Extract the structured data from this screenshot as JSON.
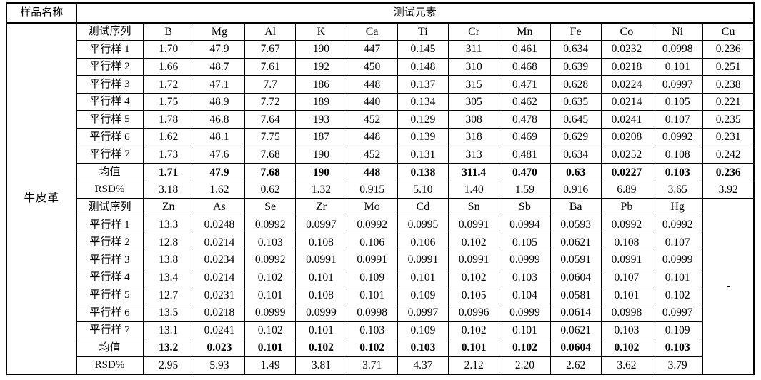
{
  "colors": {
    "text": "#000000",
    "border": "#000000",
    "background": "#ffffff"
  },
  "table": {
    "sample_name_header": "样品名称",
    "elements_header": "测试元素",
    "sample_name": "牛皮革",
    "dash": "-",
    "sections": [
      {
        "series_header": "测试序列",
        "columns": [
          "B",
          "Mg",
          "Al",
          "K",
          "Ca",
          "Ti",
          "Cr",
          "Mn",
          "Fe",
          "Co",
          "Ni",
          "Cu"
        ],
        "rows": [
          {
            "label": "平行样 1",
            "bold": false,
            "values": [
              "1.70",
              "47.9",
              "7.67",
              "190",
              "447",
              "0.145",
              "311",
              "0.461",
              "0.634",
              "0.0232",
              "0.0998",
              "0.236"
            ]
          },
          {
            "label": "平行样 2",
            "bold": false,
            "values": [
              "1.66",
              "48.7",
              "7.61",
              "192",
              "450",
              "0.148",
              "310",
              "0.468",
              "0.639",
              "0.0218",
              "0.101",
              "0.251"
            ]
          },
          {
            "label": "平行样 3",
            "bold": false,
            "values": [
              "1.72",
              "47.1",
              "7.7",
              "186",
              "448",
              "0.137",
              "315",
              "0.471",
              "0.628",
              "0.0224",
              "0.0997",
              "0.238"
            ]
          },
          {
            "label": "平行样 4",
            "bold": false,
            "values": [
              "1.75",
              "48.9",
              "7.72",
              "189",
              "440",
              "0.134",
              "305",
              "0.462",
              "0.635",
              "0.0214",
              "0.105",
              "0.221"
            ]
          },
          {
            "label": "平行样 5",
            "bold": false,
            "values": [
              "1.78",
              "46.8",
              "7.64",
              "193",
              "452",
              "0.129",
              "308",
              "0.478",
              "0.645",
              "0.0241",
              "0.107",
              "0.235"
            ]
          },
          {
            "label": "平行样 6",
            "bold": false,
            "values": [
              "1.62",
              "48.1",
              "7.75",
              "187",
              "448",
              "0.139",
              "318",
              "0.469",
              "0.629",
              "0.0208",
              "0.0992",
              "0.231"
            ]
          },
          {
            "label": "平行样 7",
            "bold": false,
            "values": [
              "1.73",
              "47.6",
              "7.68",
              "190",
              "452",
              "0.131",
              "313",
              "0.481",
              "0.634",
              "0.0252",
              "0.108",
              "0.242"
            ]
          },
          {
            "label": "均值",
            "bold": true,
            "values": [
              "1.71",
              "47.9",
              "7.68",
              "190",
              "448",
              "0.138",
              "311.4",
              "0.470",
              "0.63",
              "0.0227",
              "0.103",
              "0.236"
            ]
          },
          {
            "label": "RSD%",
            "bold": false,
            "values": [
              "3.18",
              "1.62",
              "0.62",
              "1.32",
              "0.915",
              "5.10",
              "1.40",
              "1.59",
              "0.916",
              "6.89",
              "3.65",
              "3.92"
            ]
          }
        ]
      },
      {
        "series_header": "测试序列",
        "columns": [
          "Zn",
          "As",
          "Se",
          "Zr",
          "Mo",
          "Cd",
          "Sn",
          "Sb",
          "Ba",
          "Pb",
          "Hg"
        ],
        "rows": [
          {
            "label": "平行样 1",
            "bold": false,
            "values": [
              "13.3",
              "0.0248",
              "0.0992",
              "0.0997",
              "0.0992",
              "0.0995",
              "0.0991",
              "0.0994",
              "0.0593",
              "0.0992",
              "0.0992"
            ]
          },
          {
            "label": "平行样 2",
            "bold": false,
            "values": [
              "12.8",
              "0.0214",
              "0.103",
              "0.108",
              "0.106",
              "0.106",
              "0.102",
              "0.105",
              "0.0621",
              "0.108",
              "0.107"
            ]
          },
          {
            "label": "平行样 3",
            "bold": false,
            "values": [
              "13.8",
              "0.0234",
              "0.0992",
              "0.0991",
              "0.0991",
              "0.0991",
              "0.0991",
              "0.0999",
              "0.0591",
              "0.0991",
              "0.0999"
            ]
          },
          {
            "label": "平行样 4",
            "bold": false,
            "values": [
              "13.4",
              "0.0214",
              "0.102",
              "0.101",
              "0.109",
              "0.101",
              "0.102",
              "0.103",
              "0.0604",
              "0.107",
              "0.101"
            ]
          },
          {
            "label": "平行样 5",
            "bold": false,
            "values": [
              "12.7",
              "0.0231",
              "0.101",
              "0.108",
              "0.101",
              "0.109",
              "0.105",
              "0.104",
              "0.0581",
              "0.101",
              "0.102"
            ]
          },
          {
            "label": "平行样 6",
            "bold": false,
            "values": [
              "13.5",
              "0.0218",
              "0.0999",
              "0.0999",
              "0.0998",
              "0.0997",
              "0.0996",
              "0.0999",
              "0.0614",
              "0.0998",
              "0.0997"
            ]
          },
          {
            "label": "平行样 7",
            "bold": false,
            "values": [
              "13.1",
              "0.0241",
              "0.102",
              "0.101",
              "0.103",
              "0.109",
              "0.102",
              "0.101",
              "0.0621",
              "0.103",
              "0.109"
            ]
          },
          {
            "label": "均值",
            "bold": true,
            "values": [
              "13.2",
              "0.023",
              "0.101",
              "0.102",
              "0.102",
              "0.103",
              "0.101",
              "0.102",
              "0.0604",
              "0.102",
              "0.103"
            ]
          },
          {
            "label": "RSD%",
            "bold": false,
            "values": [
              "2.95",
              "5.93",
              "1.49",
              "3.81",
              "3.71",
              "4.37",
              "2.12",
              "2.20",
              "2.62",
              "3.62",
              "3.79"
            ]
          }
        ]
      }
    ]
  }
}
